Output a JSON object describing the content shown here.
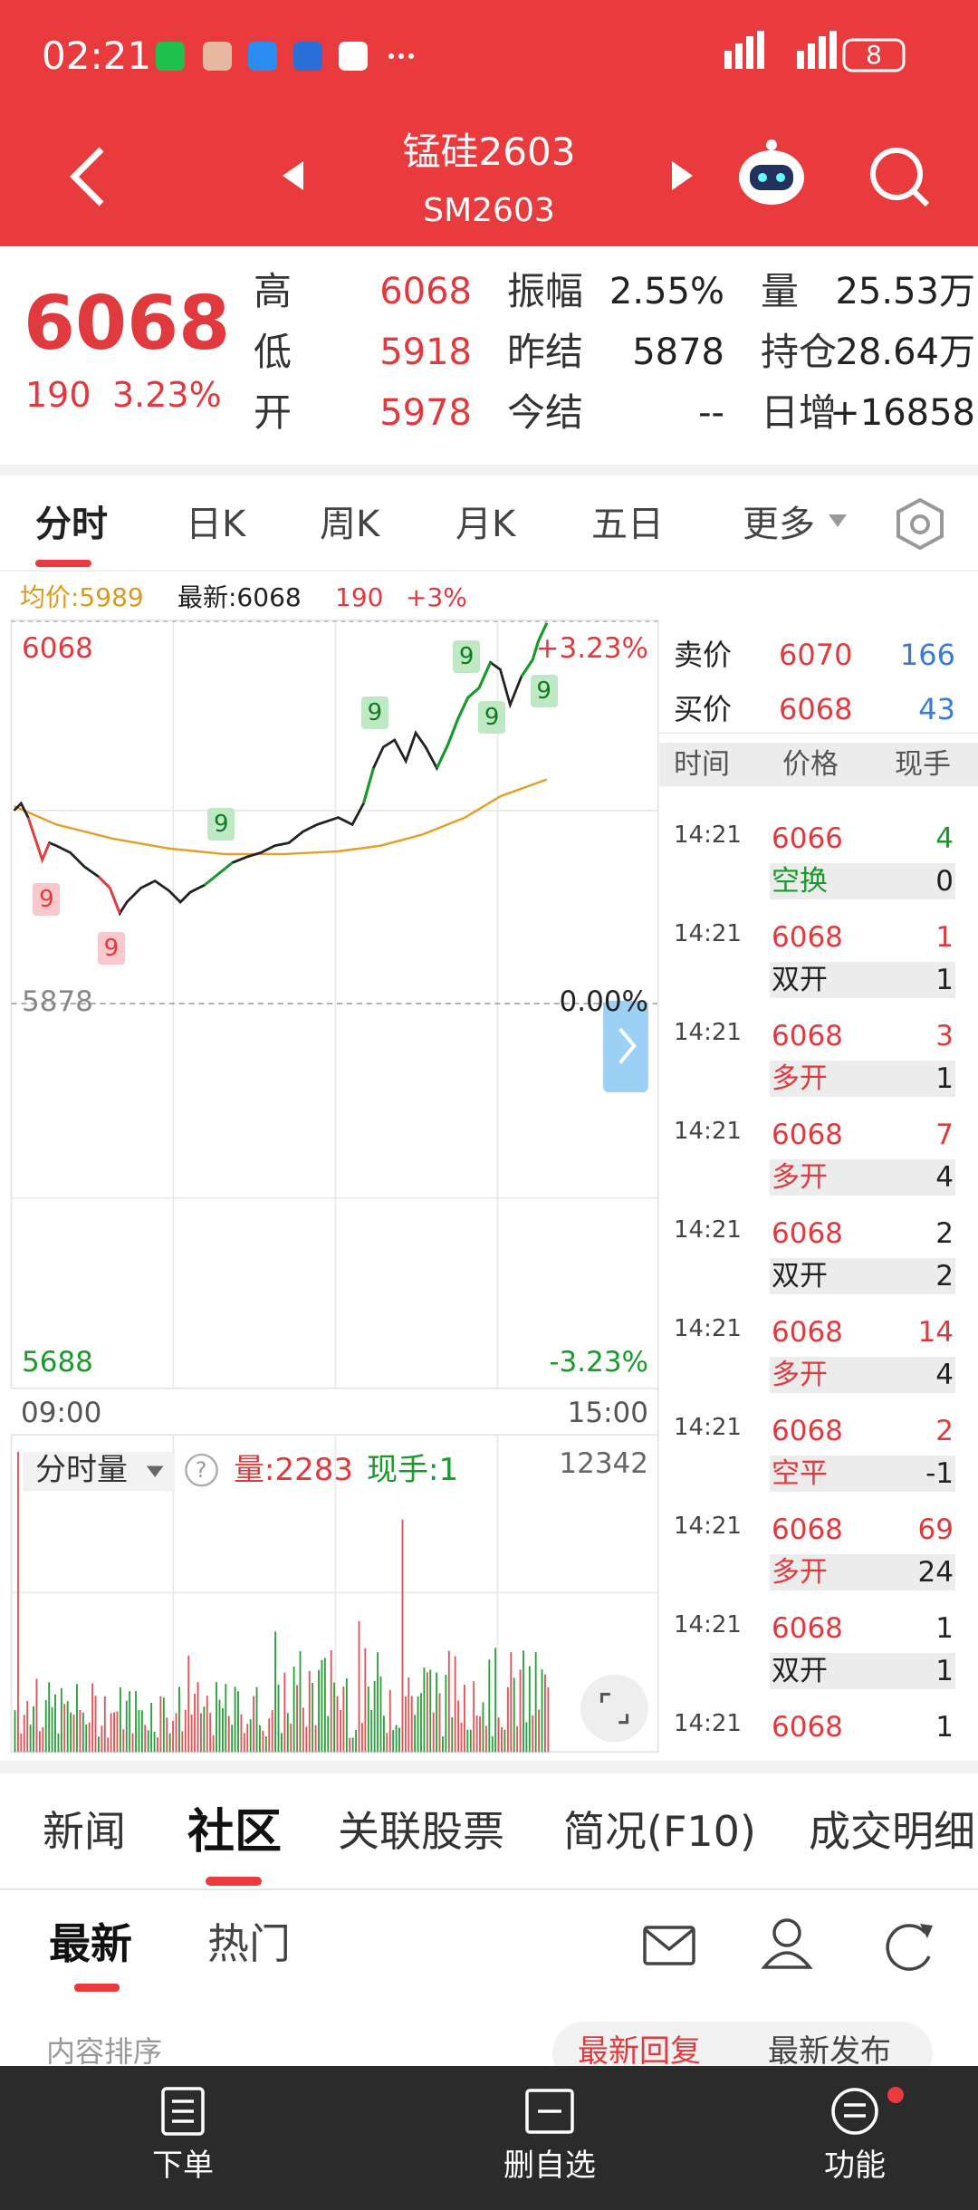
{
  "status": {
    "time": "02:21",
    "battery": "8"
  },
  "header": {
    "title": "锰硅2603",
    "code": "SM2603"
  },
  "quote": {
    "price": "6068",
    "change": "190",
    "change_pct": "3.23%",
    "fields": [
      {
        "label": "高",
        "value": "6068"
      },
      {
        "label": "振幅",
        "value": "2.55%"
      },
      {
        "label": "量",
        "value": "25.53万"
      },
      {
        "label": "低",
        "value": "5918"
      },
      {
        "label": "昨结",
        "value": "5878"
      },
      {
        "label": "持仓",
        "value": "28.64万"
      },
      {
        "label": "开",
        "value": "5978"
      },
      {
        "label": "今结",
        "value": "--"
      },
      {
        "label": "日增",
        "value": "+16858"
      }
    ]
  },
  "chart_tabs": [
    "分时",
    "日K",
    "周K",
    "月K",
    "五日",
    "更多"
  ],
  "legend": {
    "avg": "均价:5989",
    "latest": "最新:6068",
    "change": "190",
    "pct": "+3%"
  },
  "chart": {
    "top": "6068",
    "top_pct": "+3.23%",
    "mid": "5878",
    "mid_pct": "0.00%",
    "bottom": "5688",
    "bottom_pct": "-3.23%",
    "start": "09:00",
    "end": "15:00",
    "marker": "9"
  },
  "volume": {
    "selector": "分时量",
    "help": "?",
    "vol": "量:2283",
    "hand": "现手:1",
    "max": "12342"
  },
  "book": {
    "ask_label": "卖价",
    "ask_price": "6070",
    "ask_vol": "166",
    "bid_label": "买价",
    "bid_price": "6068",
    "bid_vol": "43",
    "headers": [
      "时间",
      "价格",
      "现手"
    ],
    "trades": [
      {
        "time": "14:21",
        "price": "6066",
        "vol": "4",
        "type": "空换",
        "oi": "0"
      },
      {
        "time": "14:21",
        "price": "6068",
        "vol": "1",
        "type": "双开",
        "oi": "1"
      },
      {
        "time": "14:21",
        "price": "6068",
        "vol": "3",
        "type": "多开",
        "oi": "1"
      },
      {
        "time": "14:21",
        "price": "6068",
        "vol": "7",
        "type": "多开",
        "oi": "4"
      },
      {
        "time": "14:21",
        "price": "6068",
        "vol": "2",
        "type": "双开",
        "oi": "2"
      },
      {
        "time": "14:21",
        "price": "6068",
        "vol": "14",
        "type": "多开",
        "oi": "4"
      },
      {
        "time": "14:21",
        "price": "6068",
        "vol": "2",
        "type": "空平",
        "oi": "-1"
      },
      {
        "time": "14:21",
        "price": "6068",
        "vol": "69",
        "type": "多开",
        "oi": "24"
      },
      {
        "time": "14:21",
        "price": "6068",
        "vol": "1",
        "type": "双开",
        "oi": "1"
      },
      {
        "time": "14:21",
        "price": "6068",
        "vol": "1"
      }
    ]
  },
  "info_tabs": [
    "新闻",
    "社区",
    "关联股票",
    "简况(F10)",
    "成交明细"
  ],
  "sub_tabs": [
    "最新",
    "热门"
  ],
  "sort": {
    "label": "内容排序",
    "options": [
      "最新回复",
      "最新发布"
    ]
  },
  "nav": [
    "下单",
    "删自选",
    "功能"
  ]
}
